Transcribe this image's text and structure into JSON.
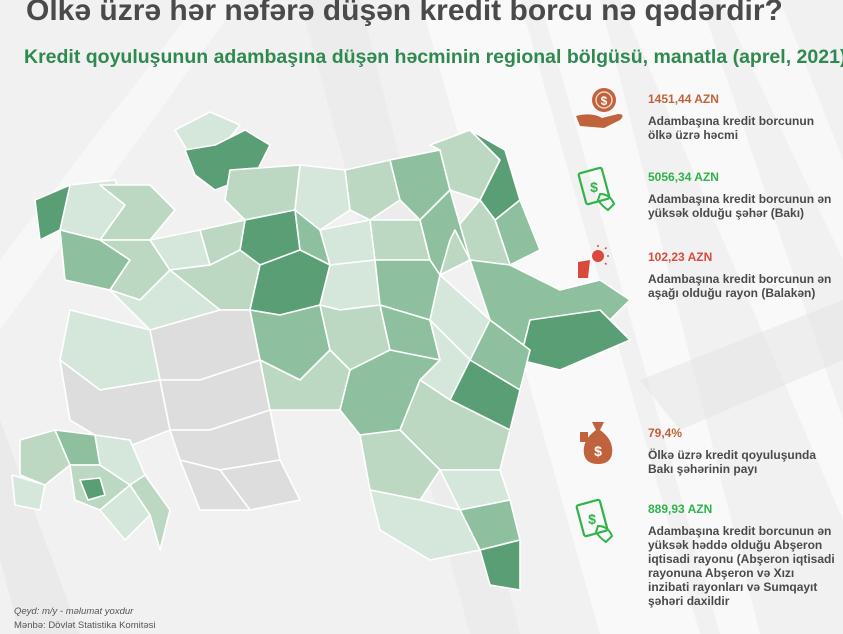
{
  "title": "Ölkə üzrə hər nəfərə düşən kredit borcu nə qədərdir?",
  "subtitle": "Kredit qoyuluşunun adambaşına düşən həcminin regional bölgüsü, manatla (aprel, 2021)",
  "colors": {
    "value_orange": "#c0623c",
    "value_green": "#2fb34a",
    "value_red": "#d84b3c",
    "map_dark": "#5a9e76",
    "map_mid": "#8ec0a0",
    "map_light": "#bcd8c3",
    "map_pale": "#d5e6da",
    "map_grey": "#dddddd"
  },
  "stats": [
    {
      "value": "1451,44 AZN",
      "label": "Adambaşına kredit borcunun ölkə üzrə həcmi",
      "icon": "coin-hand-icon",
      "color": "#c0623c"
    },
    {
      "value": "5056,34 AZN",
      "label": "Adambaşına kredit borcunun ən yüksək olduğu şəhər (Bakı)",
      "icon": "cash-hand-icon",
      "color": "#2fb34a"
    },
    {
      "value": "102,23 AZN",
      "label": "Adambaşına kredit borcunun ən aşağı olduğu rayon (Balakən)",
      "icon": "low-hand-icon",
      "color": "#d84b3c"
    },
    {
      "value": "79,4%",
      "label": "Ölkə üzrə kredit qoyuluşunda Bakı şəhərinin payı",
      "icon": "money-bag-icon",
      "color": "#c0623c"
    },
    {
      "value": "889,93 AZN",
      "label": "Adambaşına kredit borcunun ən yüksək həddə olduğu Abşeron iqtisadi rayonu (Abşeron iqtisadi rayonuna Abşeron və Xızı inzibati rayonları və Sumqayıt şəhəri daxildir",
      "icon": "cash-hand-icon",
      "color": "#2fb34a"
    }
  ],
  "notes": {
    "legend": "Qeyd: m/y - məlumat yoxdur",
    "source": "Mənbə: Dövlət Statistika Komitəsi"
  }
}
